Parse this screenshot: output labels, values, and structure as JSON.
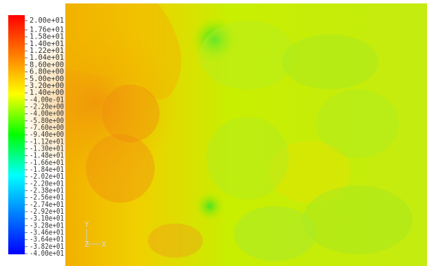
{
  "chart_data": {
    "type": "colorbar",
    "ylim": [
      -40,
      20
    ],
    "yticks": [
      {
        "value": 20,
        "label": "2.00e+01"
      },
      {
        "value": 17.6,
        "label": "1.76e+01"
      },
      {
        "value": 15.8,
        "label": "1.58e+01"
      },
      {
        "value": 14,
        "label": "1.40e+01"
      },
      {
        "value": 12.2,
        "label": "1.22e+01"
      },
      {
        "value": 10.4,
        "label": "1.04e+01"
      },
      {
        "value": 8.6,
        "label": "8.60e+00"
      },
      {
        "value": 6.8,
        "label": "6.80e+00"
      },
      {
        "value": 5,
        "label": "5.00e+00"
      },
      {
        "value": 3.2,
        "label": "3.20e+00"
      },
      {
        "value": 1.4,
        "label": "1.40e+00"
      },
      {
        "value": -0.4,
        "label": "-4.00e-01"
      },
      {
        "value": -2.2,
        "label": "-2.20e+00"
      },
      {
        "value": -4,
        "label": "-4.00e+00"
      },
      {
        "value": -5.8,
        "label": "-5.80e+00"
      },
      {
        "value": -7.6,
        "label": "-7.60e+00"
      },
      {
        "value": -9.4,
        "label": "-9.40e+00"
      },
      {
        "value": -11.2,
        "label": "-1.12e+01"
      },
      {
        "value": -13,
        "label": "-1.30e+01"
      },
      {
        "value": -14.8,
        "label": "-1.48e+01"
      },
      {
        "value": -16.6,
        "label": "-1.66e+01"
      },
      {
        "value": -18.4,
        "label": "-1.84e+01"
      },
      {
        "value": -20.2,
        "label": "-2.02e+01"
      },
      {
        "value": -22,
        "label": "-2.20e+01"
      },
      {
        "value": -23.8,
        "label": "-2.38e+01"
      },
      {
        "value": -25.6,
        "label": "-2.56e+01"
      },
      {
        "value": -27.4,
        "label": "-2.74e+01"
      },
      {
        "value": -29.2,
        "label": "-2.92e+01"
      },
      {
        "value": -31,
        "label": "-3.10e+01"
      },
      {
        "value": -32.8,
        "label": "-3.28e+01"
      },
      {
        "value": -34.6,
        "label": "-3.46e+01"
      },
      {
        "value": -36.4,
        "label": "-3.64e+01"
      },
      {
        "value": -38.2,
        "label": "-3.82e+01"
      },
      {
        "value": -40,
        "label": "-4.00e+01"
      }
    ],
    "axis_y_label": "Y",
    "axis_z_label": "Z",
    "axis_x_label": "X"
  }
}
